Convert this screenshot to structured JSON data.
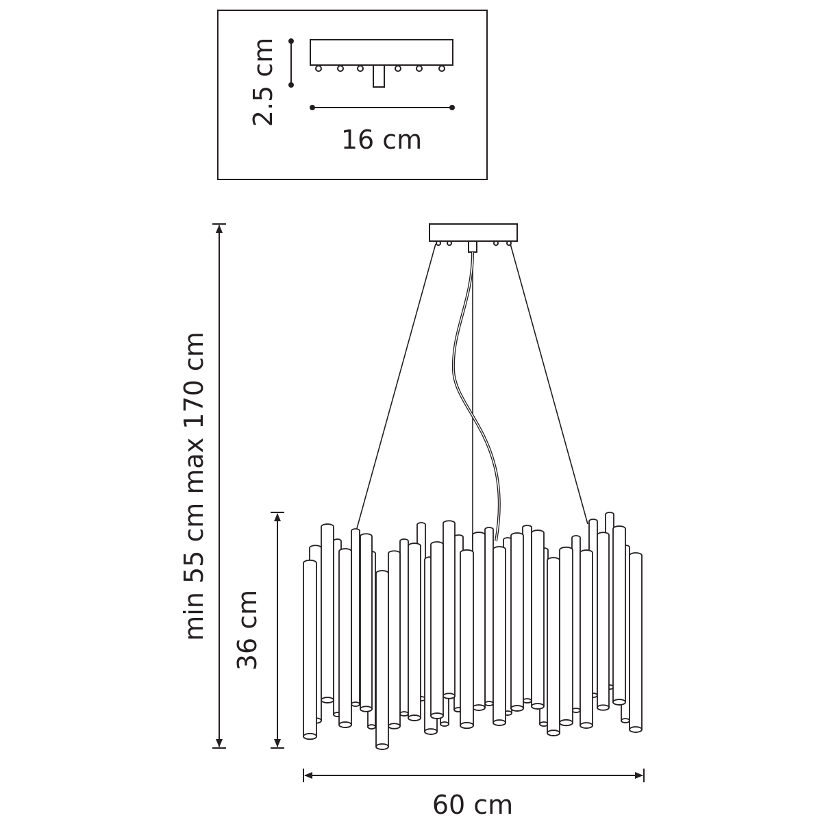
{
  "colors": {
    "line": "#231f20",
    "background": "#ffffff"
  },
  "canopy_detail": {
    "height_label": "2.5 cm",
    "width_label": "16 cm"
  },
  "dimensions": {
    "total_height_label": "min 55 cm max 170 cm",
    "body_height_label": "36 cm",
    "diameter_label": "60 cm"
  }
}
